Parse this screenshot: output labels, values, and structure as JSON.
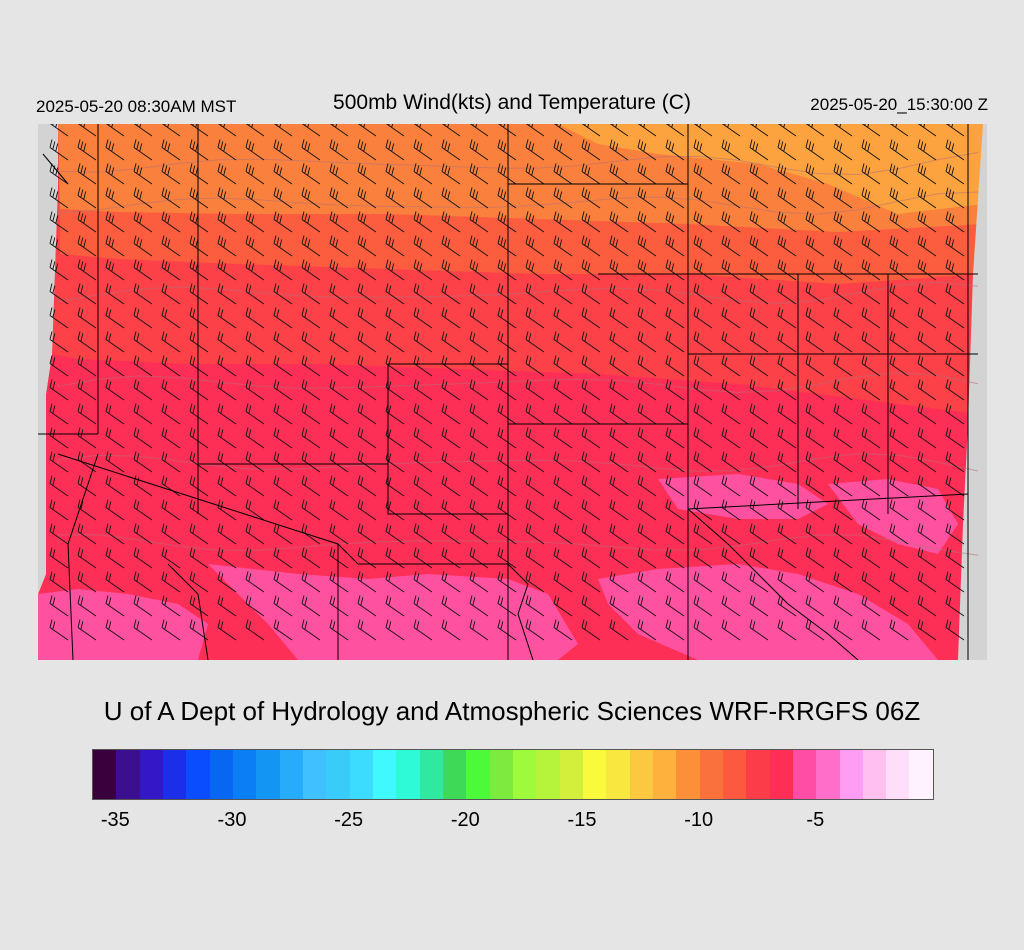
{
  "header": {
    "local_time": "2025-05-20 08:30AM MST",
    "title": "500mb Wind(kts) and Temperature (C)",
    "utc_time": "2025-05-20_15:30:00 Z"
  },
  "footer": {
    "credit": "U of A Dept of Hydrology and Atmospheric Sciences WRF-RRGFS 06Z"
  },
  "colorbar": {
    "colors": [
      "#3a003d",
      "#3b0f8f",
      "#3417c7",
      "#1b2ee8",
      "#0a4dff",
      "#0766f2",
      "#0a7ff5",
      "#1396f3",
      "#27abfb",
      "#40c0ff",
      "#39ccfb",
      "#3bdcff",
      "#3ff9fe",
      "#2ffad7",
      "#2ee99f",
      "#3dd957",
      "#4cfa3a",
      "#7dea3e",
      "#9ffa3c",
      "#b5f43a",
      "#d4ee3c",
      "#fafa3d",
      "#f8e73e",
      "#fcc83f",
      "#ffb13d",
      "#fc9039",
      "#fb713b",
      "#fd5941",
      "#fb3d4a",
      "#ff2e57",
      "#ff4ca4",
      "#ff6ec8",
      "#ff9cf3",
      "#ffc0f0",
      "#ffdefa",
      "#fff2ff"
    ],
    "tick_labels": [
      "-35",
      "-30",
      "-25",
      "-20",
      "-15",
      "-10",
      "-5"
    ]
  },
  "legend_meaning": {
    "temperature_range": [
      -36,
      -1
    ],
    "units": "C"
  },
  "map_colors": {
    "north_orange": "#fa813d",
    "light_orange": "#fca33f",
    "red_orange": "#fc5d3f",
    "red": "#fd4148",
    "crimson": "#fe2f56",
    "pink": "#fe52a0",
    "background": "#d3d3d3",
    "boundary": "#000000"
  }
}
